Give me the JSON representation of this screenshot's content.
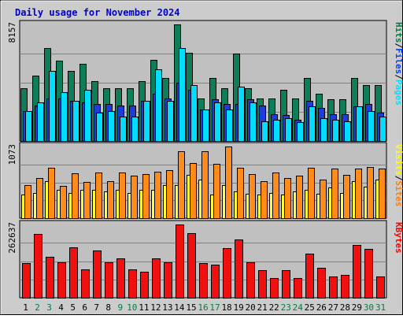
{
  "chart_data": {
    "type": "bar",
    "title": "Daily usage for November 2024",
    "categories": [
      "1",
      "2",
      "3",
      "4",
      "5",
      "6",
      "7",
      "8",
      "9",
      "10",
      "11",
      "12",
      "13",
      "14",
      "15",
      "16",
      "17",
      "18",
      "19",
      "20",
      "21",
      "22",
      "23",
      "24",
      "25",
      "26",
      "27",
      "28",
      "29",
      "30",
      "31"
    ],
    "weekend_days": [
      "2",
      "3",
      "9",
      "10",
      "16",
      "17",
      "23",
      "24",
      "30",
      "31"
    ],
    "panels": [
      {
        "id": "hits-files-pages",
        "ymax_label": "8157",
        "ylim": [
          0,
          8157
        ],
        "legend": [
          "Pages",
          "Files",
          "Hits"
        ],
        "legend_colors": [
          "#00E0FF",
          "#0040FF",
          "#008040"
        ],
        "series": [
          {
            "name": "Hits",
            "color": "#0E7E5A",
            "values": [
              3700,
              4600,
              6500,
              5600,
              4900,
              5400,
              4200,
              3700,
              3700,
              3700,
              4200,
              5700,
              4400,
              8157,
              6200,
              3000,
              4400,
              3700,
              6100,
              3700,
              3000,
              3000,
              3600,
              3000,
              4400,
              3300,
              2900,
              2900,
              4400,
              3900,
              3900
            ]
          },
          {
            "name": "Files",
            "color": "#1E3CDB",
            "values": [
              2100,
              2500,
              3000,
              3000,
              2800,
              2700,
              2600,
              2600,
              2500,
              2500,
              2800,
              3300,
              3000,
              4100,
              3600,
              2200,
              2900,
              2600,
              2600,
              2900,
              2500,
              1900,
              1800,
              1500,
              2800,
              2300,
              1900,
              1900,
              2400,
              2600,
              2000
            ]
          },
          {
            "name": "Pages",
            "color": "#00DDFF",
            "values": [
              2100,
              2700,
              4900,
              3400,
              2800,
              3600,
              2000,
              2100,
              1700,
              1700,
              2800,
              5000,
              2800,
              6500,
              3900,
              2200,
              2700,
              2200,
              3800,
              2700,
              1400,
              1500,
              1600,
              1300,
              2400,
              1600,
              1500,
              1400,
              2400,
              2100,
              1700
            ]
          }
        ]
      },
      {
        "id": "visits-sites",
        "ymax_label": "1073",
        "ylim": [
          0,
          1073
        ],
        "legend": [
          "Sites",
          "Visits"
        ],
        "legend_colors": [
          "#FF8000",
          "#FFFF00"
        ],
        "series": [
          {
            "name": "Visits",
            "color": "#FFFF33",
            "values": [
              350,
              380,
              550,
              420,
              380,
              420,
              420,
              400,
              420,
              380,
              420,
              420,
              500,
              500,
              650,
              580,
              350,
              500,
              400,
              360,
              350,
              380,
              350,
              400,
              430,
              370,
              460,
              380,
              550,
              470,
              580
            ]
          },
          {
            "name": "Sites",
            "color": "#FF8C1A",
            "values": [
              500,
              600,
              750,
              480,
              670,
              540,
              680,
              560,
              680,
              640,
              660,
              700,
              720,
              1000,
              820,
              1000,
              810,
              1073,
              760,
              660,
              550,
              680,
              600,
              640,
              760,
              580,
              740,
              650,
              740,
              770,
              740
            ]
          }
        ]
      },
      {
        "id": "kbytes",
        "ymax_label": "262637",
        "ylim": [
          0,
          262637
        ],
        "legend": [
          "KBytes"
        ],
        "legend_colors": [
          "#FF0000"
        ],
        "series": [
          {
            "name": "KBytes",
            "color": "#F01010",
            "values": [
              125000,
              230000,
              148000,
              128000,
              180000,
              103000,
              170000,
              128000,
              140000,
              103000,
              92000,
              140000,
              127000,
              262637,
              232000,
              124000,
              120000,
              178000,
              209000,
              127000,
              99000,
              70000,
              98000,
              70000,
              157000,
              108000,
              75000,
              81000,
              189000,
              175000,
              75000
            ]
          }
        ]
      }
    ]
  }
}
